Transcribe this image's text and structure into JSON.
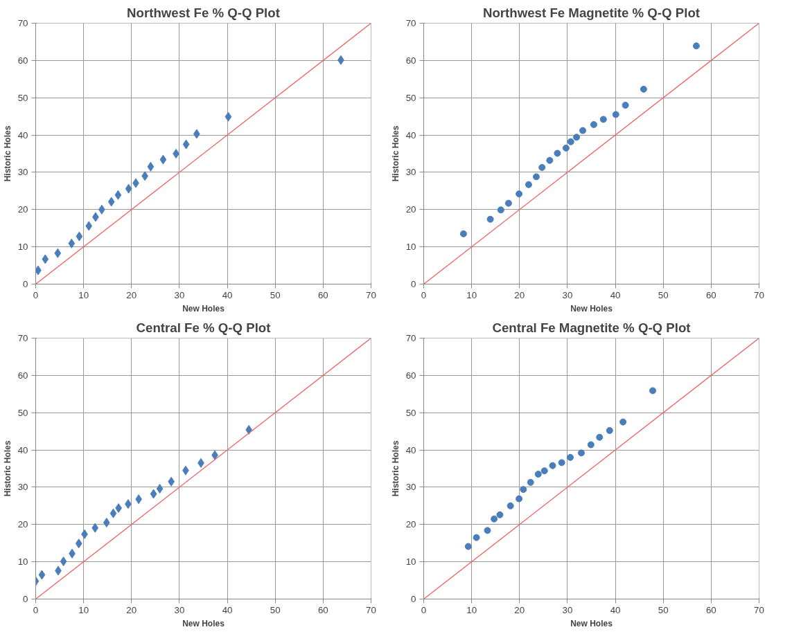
{
  "chart_data": [
    {
      "type": "scatter",
      "title": "Northwest Fe % Q-Q Plot",
      "xlabel": "New Holes",
      "ylabel": "Historic Holes",
      "grid": true,
      "xlim": [
        0,
        70
      ],
      "ylim": [
        0,
        70
      ],
      "xticks": [
        0,
        10,
        20,
        30,
        40,
        50,
        60,
        70
      ],
      "yticks": [
        0,
        10,
        20,
        30,
        40,
        50,
        60,
        70
      ],
      "series": [
        {
          "color": "#4a7ebb",
          "marker": "diamond",
          "x": [
            0.5,
            2.0,
            4.6,
            7.5,
            9.1,
            11.1,
            12.5,
            13.8,
            15.8,
            17.2,
            19.4,
            20.9,
            22.8,
            24.0,
            26.6,
            29.3,
            31.4,
            33.6,
            40.2,
            63.7
          ],
          "values": [
            3.7,
            6.7,
            8.3,
            10.9,
            12.8,
            15.6,
            18.0,
            20.0,
            22.1,
            23.9,
            25.6,
            27.1,
            29.0,
            31.5,
            33.4,
            35.0,
            37.5,
            40.3,
            44.9,
            60.1
          ]
        },
        {
          "type": "line",
          "color": "#f06060",
          "marker": "none",
          "x": [
            0,
            70
          ],
          "values": [
            0,
            70
          ]
        }
      ]
    },
    {
      "type": "scatter",
      "title": "Northwest Fe Magnetite % Q-Q Plot",
      "xlabel": "New Holes",
      "ylabel": "Historic Holes",
      "grid": true,
      "xlim": [
        0,
        70
      ],
      "ylim": [
        0,
        70
      ],
      "xticks": [
        0,
        10,
        20,
        30,
        40,
        50,
        60,
        70
      ],
      "yticks": [
        0,
        10,
        20,
        30,
        40,
        50,
        60,
        70
      ],
      "series": [
        {
          "color": "#4a7ebb",
          "marker": "circle",
          "x": [
            8.3,
            13.9,
            16.1,
            17.7,
            19.9,
            21.9,
            23.5,
            24.7,
            26.3,
            27.9,
            29.7,
            30.7,
            31.9,
            33.2,
            35.5,
            37.5,
            40.1,
            42.1,
            45.9,
            56.9
          ],
          "values": [
            13.5,
            17.4,
            19.9,
            21.7,
            24.2,
            26.7,
            28.8,
            31.3,
            33.2,
            35.1,
            36.5,
            38.2,
            39.4,
            41.2,
            42.8,
            44.2,
            45.5,
            48.0,
            52.3,
            63.9
          ]
        },
        {
          "type": "line",
          "color": "#f06060",
          "marker": "none",
          "x": [
            0,
            70
          ],
          "values": [
            0,
            70
          ]
        }
      ]
    },
    {
      "type": "scatter",
      "title": "Central Fe % Q-Q Plot",
      "xlabel": "New Holes",
      "ylabel": "Historic Holes",
      "grid": true,
      "xlim": [
        0,
        70
      ],
      "ylim": [
        0,
        70
      ],
      "xticks": [
        0,
        10,
        20,
        30,
        40,
        50,
        60,
        70
      ],
      "yticks": [
        0,
        10,
        20,
        30,
        40,
        50,
        60,
        70
      ],
      "series": [
        {
          "color": "#4a7ebb",
          "marker": "diamond",
          "x": [
            0.0,
            1.3,
            4.7,
            5.8,
            7.6,
            9.0,
            10.2,
            12.4,
            14.8,
            16.2,
            17.3,
            19.3,
            21.5,
            24.6,
            25.9,
            28.3,
            31.3,
            34.5,
            37.4,
            44.5
          ],
          "values": [
            4.8,
            6.5,
            7.6,
            10.1,
            12.2,
            14.9,
            17.4,
            19.1,
            20.5,
            23.0,
            24.4,
            25.5,
            26.8,
            28.2,
            29.6,
            31.5,
            34.5,
            36.5,
            38.6,
            45.4
          ]
        },
        {
          "type": "line",
          "color": "#f06060",
          "marker": "none",
          "x": [
            0,
            70
          ],
          "values": [
            0,
            70
          ]
        }
      ]
    },
    {
      "type": "scatter",
      "title": "Central Fe Magnetite % Q-Q Plot",
      "xlabel": "New Holes",
      "ylabel": "Historic Holes",
      "grid": true,
      "xlim": [
        0,
        70
      ],
      "ylim": [
        0,
        70
      ],
      "xticks": [
        0,
        10,
        20,
        30,
        40,
        50,
        60,
        70
      ],
      "yticks": [
        0,
        10,
        20,
        30,
        40,
        50,
        60,
        70
      ],
      "series": [
        {
          "color": "#4a7ebb",
          "marker": "circle",
          "x": [
            9.3,
            11.0,
            13.3,
            14.7,
            15.9,
            18.1,
            19.9,
            20.8,
            22.3,
            23.9,
            25.2,
            26.9,
            28.8,
            30.6,
            32.9,
            34.9,
            36.7,
            38.8,
            41.6,
            47.8
          ],
          "values": [
            14.1,
            16.5,
            18.4,
            21.5,
            22.6,
            25.0,
            26.9,
            29.4,
            31.3,
            33.5,
            34.4,
            35.8,
            36.6,
            38.0,
            39.2,
            41.4,
            43.4,
            45.2,
            47.5,
            55.9
          ]
        },
        {
          "type": "line",
          "color": "#f06060",
          "marker": "none",
          "x": [
            0,
            70
          ],
          "values": [
            0,
            70
          ]
        }
      ]
    }
  ]
}
